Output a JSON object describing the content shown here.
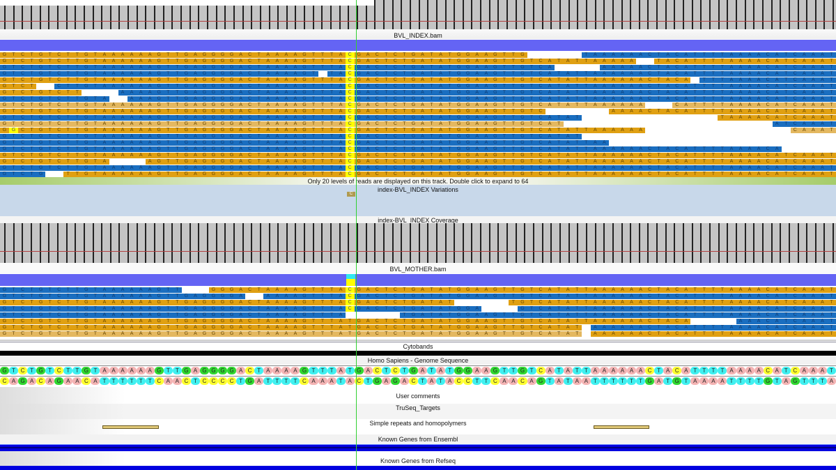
{
  "reference": {
    "forward": "GTCTGTCTTGTAAAAAAGTTGAGGGGACTAAAAGTTTATGACTCTGATATGGAAGTTGTCATATTAAAAAACTACATTTTAAAACATCAAAT",
    "reverse": "CAGACAGAACATTTTTTCAACTCCCCTGATTTTCAAATACTGAGACTATACCTTCAACAGTATAATTTTTTGATGTAAAATTTTGTAGTTTA"
  },
  "colors": {
    "A": "#f4b4b4",
    "C": "#ffff30",
    "G": "#30d830",
    "T": "#40f0f0",
    "forward": "#e0a012",
    "light": "#e4b860",
    "reverse": "#1a6ec0",
    "variant": "#ffff00"
  },
  "variant": {
    "index": 38,
    "base": "C"
  },
  "tracks": {
    "index_bam": "BVL_INDEX.bam",
    "levels_message": "Only 20 levels of reads are displayed on this track. Double click to expand to 64",
    "variations": "index-BVL_INDEX Variations",
    "variation_marker": "C",
    "coverage": "index-BVL_INDEX Coverage",
    "mother_bam": "BVL_MOTHER.bam",
    "cytobands": "Cytobands",
    "genome": "Homo Sapiens - Genome Sequence",
    "user_comments": "User comments",
    "truseq": "TruSeq_Targets",
    "repeats": "Simple repeats and homopolymers",
    "ensembl": "Known Genes from Ensembl",
    "refseq": "Known Genes from Refseq"
  },
  "index_reads": [
    {
      "segs": [
        [
          0,
          57,
          "f"
        ],
        [
          64,
          91,
          "r"
        ]
      ],
      "var": true
    },
    {
      "segs": [
        [
          0,
          69,
          "f"
        ],
        [
          72,
          91,
          "f"
        ]
      ],
      "var": true
    },
    {
      "segs": [
        [
          0,
          60,
          "r"
        ],
        [
          66,
          91,
          "r"
        ]
      ],
      "var": true
    },
    {
      "segs": [
        [
          0,
          34,
          "r"
        ],
        [
          36,
          91,
          "r"
        ]
      ],
      "var": true
    },
    {
      "segs": [
        [
          0,
          75,
          "f"
        ],
        [
          77,
          91,
          "r"
        ]
      ],
      "var": true
    },
    {
      "segs": [
        [
          0,
          3,
          "f"
        ],
        [
          6,
          91,
          "r"
        ]
      ],
      "var": true
    },
    {
      "segs": [
        [
          0,
          8,
          "f"
        ],
        [
          13,
          91,
          "r"
        ]
      ],
      "var": true
    },
    {
      "segs": [
        [
          0,
          11,
          "r"
        ],
        [
          14,
          91,
          "r"
        ]
      ],
      "var": true
    },
    {
      "segs": [
        [
          0,
          70,
          "l"
        ],
        [
          74,
          91,
          "l"
        ]
      ],
      "var": true
    },
    {
      "segs": [
        [
          0,
          59,
          "f"
        ],
        [
          67,
          91,
          "f"
        ]
      ],
      "var": true
    },
    {
      "segs": [
        [
          0,
          63,
          "r"
        ],
        [
          79,
          91,
          "f"
        ]
      ],
      "var": true
    },
    {
      "segs": [
        [
          0,
          61,
          "l"
        ],
        [
          85,
          91,
          "r"
        ]
      ],
      "var": true
    },
    {
      "segs": [
        [
          0,
          70,
          "f"
        ],
        [
          87,
          91,
          "l"
        ]
      ],
      "var": true,
      "mismatch": {
        "index": 1,
        "base": "G"
      }
    },
    {
      "segs": [
        [
          0,
          63,
          "r"
        ]
      ],
      "var": true
    },
    {
      "segs": [
        [
          0,
          66,
          "r"
        ]
      ],
      "var": true
    },
    {
      "segs": [
        [
          0,
          85,
          "r"
        ]
      ],
      "var": true
    },
    {
      "segs": [
        [
          0,
          91,
          "f"
        ]
      ],
      "var": true
    },
    {
      "segs": [
        [
          0,
          11,
          "f"
        ],
        [
          16,
          91,
          "f"
        ]
      ],
      "var": true
    },
    {
      "segs": [
        [
          0,
          91,
          "r"
        ]
      ],
      "var": true
    },
    {
      "segs": [
        [
          0,
          4,
          "r"
        ],
        [
          7,
          91,
          "f"
        ]
      ],
      "var": true
    }
  ],
  "mother_reads": [
    {
      "segs": [
        [
          0,
          19,
          "r"
        ],
        [
          23,
          91,
          "f"
        ]
      ],
      "var": true
    },
    {
      "segs": [
        [
          0,
          26,
          "r"
        ],
        [
          29,
          91,
          "r"
        ]
      ],
      "var": true
    },
    {
      "segs": [
        [
          0,
          49,
          "f"
        ],
        [
          56,
          91,
          "f"
        ]
      ],
      "var": true
    },
    {
      "segs": [
        [
          0,
          52,
          "r"
        ],
        [
          57,
          91,
          "r"
        ]
      ],
      "var": true
    },
    {
      "segs": [
        [
          0,
          37,
          "r"
        ],
        [
          44,
          91,
          "r"
        ]
      ],
      "var": false
    },
    {
      "segs": [
        [
          0,
          75,
          "f"
        ],
        [
          81,
          91,
          "r"
        ]
      ],
      "var": false
    },
    {
      "segs": [
        [
          0,
          63,
          "f"
        ],
        [
          65,
          91,
          "r"
        ]
      ],
      "var": false
    },
    {
      "segs": [
        [
          0,
          63,
          "l"
        ],
        [
          65,
          91,
          "f"
        ]
      ],
      "var": false
    }
  ],
  "repeats": [
    [
      11,
      17
    ],
    [
      65,
      71
    ]
  ]
}
